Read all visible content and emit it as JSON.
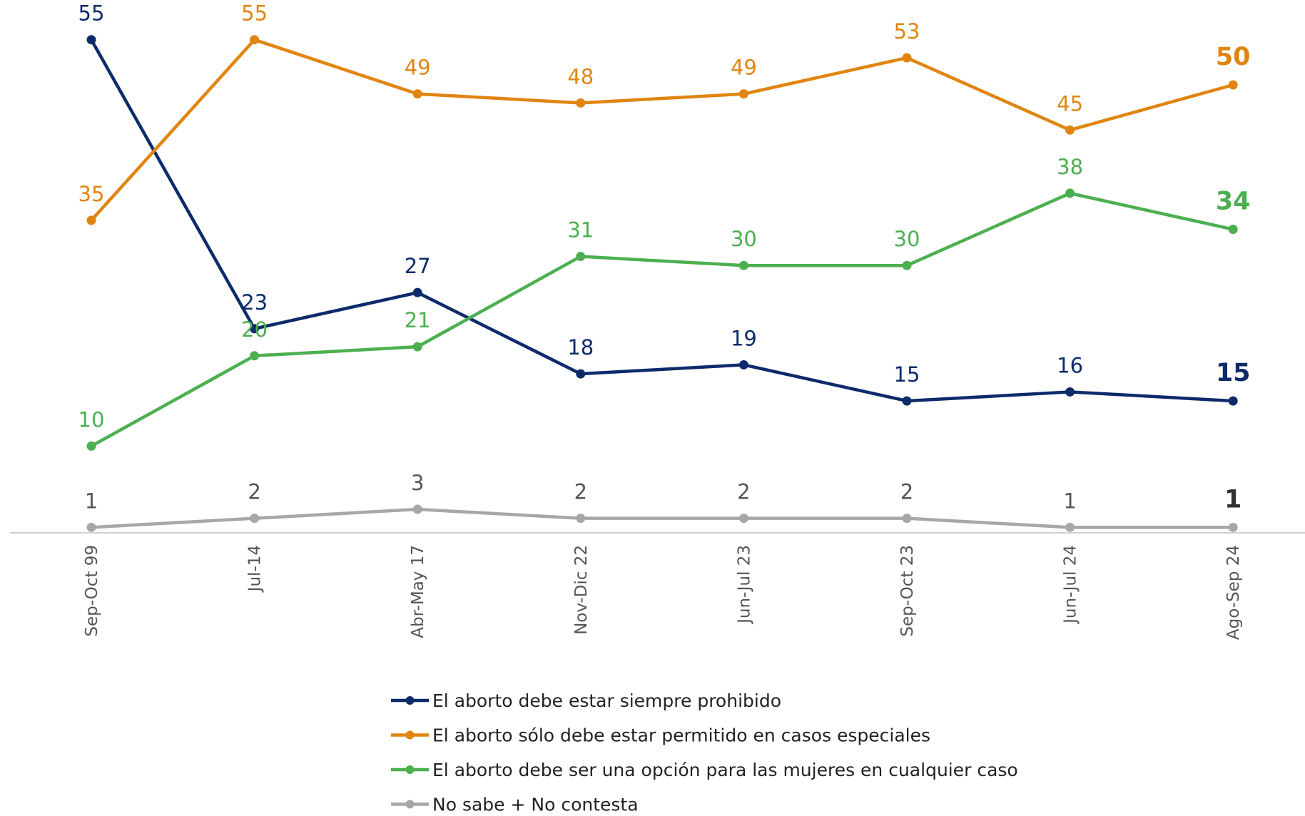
{
  "chart_data": {
    "type": "line",
    "categories": [
      "Sep-Oct 99",
      "Jul-14",
      "Abr-May 17",
      "Nov-Dic 22",
      "Jun-Jul 23",
      "Sep-Oct 23",
      "Jun-Jul 24",
      "Ago-Sep 24"
    ],
    "series": [
      {
        "name": "El aborto debe estar siempre prohibido",
        "color": "#0d2b6b",
        "values": [
          55,
          23,
          27,
          18,
          19,
          15,
          16,
          15
        ]
      },
      {
        "name": "El aborto sólo debe estar permitido en casos especiales",
        "color": "#e0850f",
        "values": [
          35,
          55,
          49,
          48,
          49,
          53,
          45,
          50
        ]
      },
      {
        "name": "El aborto debe ser una opción para las mujeres en cualquier caso",
        "color": "#4caf50",
        "values": [
          10,
          20,
          21,
          31,
          30,
          30,
          38,
          34
        ]
      },
      {
        "name": "No sabe + No contesta",
        "color": "#a9a6a8",
        "values": [
          1,
          2,
          3,
          2,
          2,
          2,
          1,
          1
        ]
      }
    ]
  }
}
